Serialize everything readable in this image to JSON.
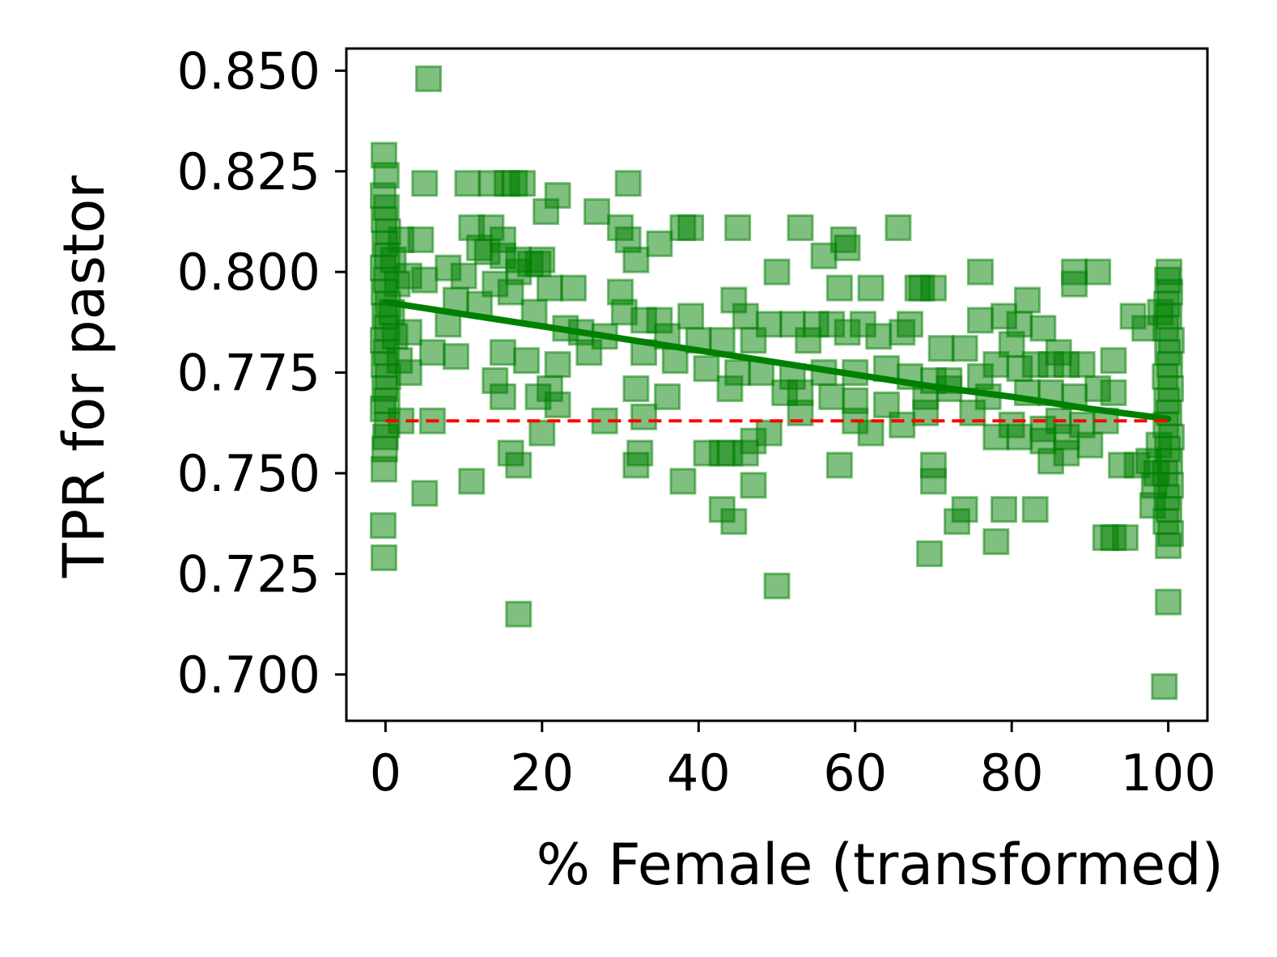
{
  "chart_data": {
    "type": "scatter",
    "title": "",
    "xlabel": "% Female (transformed)",
    "ylabel": "TPR for pastor",
    "xlim": [
      -5,
      105
    ],
    "ylim": [
      0.6885,
      0.8555
    ],
    "xticks": [
      0,
      20,
      40,
      60,
      80,
      100
    ],
    "xtick_labels": [
      "0",
      "20",
      "40",
      "60",
      "80",
      "100"
    ],
    "yticks": [
      0.7,
      0.725,
      0.75,
      0.775,
      0.8,
      0.825,
      0.85
    ],
    "ytick_labels": [
      "0.700",
      "0.725",
      "0.750",
      "0.775",
      "0.800",
      "0.825",
      "0.850"
    ],
    "grid": false,
    "colors": {
      "points": "#008000",
      "trend": "#008000",
      "baseline": "#ff0000"
    },
    "series": [
      {
        "kind": "scatter",
        "marker": "square",
        "alpha": 0.5,
        "points": [
          [
            5.5,
            0.848
          ],
          [
            -0.2,
            0.829
          ],
          [
            0.1,
            0.824
          ],
          [
            5,
            0.822
          ],
          [
            10.5,
            0.822
          ],
          [
            13.5,
            0.822
          ],
          [
            15.5,
            0.822
          ],
          [
            16.5,
            0.822
          ],
          [
            17.5,
            0.822
          ],
          [
            31,
            0.822
          ],
          [
            22,
            0.819
          ],
          [
            20.5,
            0.815
          ],
          [
            27,
            0.815
          ],
          [
            38,
            0.811
          ],
          [
            39,
            0.811
          ],
          [
            45,
            0.811
          ],
          [
            53,
            0.811
          ],
          [
            65.5,
            0.811
          ],
          [
            11,
            0.811
          ],
          [
            13.5,
            0.811
          ],
          [
            30,
            0.811
          ],
          [
            4.5,
            0.808
          ],
          [
            2,
            0.808
          ],
          [
            15,
            0.808
          ],
          [
            31,
            0.808
          ],
          [
            35,
            0.807
          ],
          [
            58.5,
            0.808
          ],
          [
            12,
            0.806
          ],
          [
            13,
            0.805
          ],
          [
            15,
            0.804
          ],
          [
            17,
            0.803
          ],
          [
            18.5,
            0.802
          ],
          [
            20,
            0.803
          ],
          [
            32,
            0.803
          ],
          [
            56,
            0.804
          ],
          [
            59,
            0.806
          ],
          [
            8,
            0.801
          ],
          [
            50,
            0.8
          ],
          [
            76,
            0.8
          ],
          [
            88,
            0.8
          ],
          [
            91,
            0.8
          ],
          [
            10,
            0.799
          ],
          [
            17,
            0.8
          ],
          [
            19.5,
            0.802
          ],
          [
            3,
            0.799
          ],
          [
            5,
            0.798
          ],
          [
            58,
            0.796
          ],
          [
            62,
            0.796
          ],
          [
            68,
            0.796
          ],
          [
            68.5,
            0.796
          ],
          [
            70,
            0.796
          ],
          [
            82,
            0.793
          ],
          [
            88,
            0.797
          ],
          [
            21,
            0.796
          ],
          [
            24,
            0.796
          ],
          [
            30,
            0.795
          ],
          [
            14,
            0.797
          ],
          [
            16,
            0.795
          ],
          [
            9,
            0.793
          ],
          [
            12,
            0.792
          ],
          [
            19,
            0.79
          ],
          [
            44.5,
            0.793
          ],
          [
            30.5,
            0.79
          ],
          [
            33,
            0.788
          ],
          [
            35,
            0.788
          ],
          [
            39,
            0.789
          ],
          [
            46,
            0.789
          ],
          [
            49,
            0.787
          ],
          [
            52,
            0.787
          ],
          [
            55,
            0.787
          ],
          [
            57,
            0.787
          ],
          [
            61,
            0.787
          ],
          [
            67,
            0.787
          ],
          [
            76,
            0.788
          ],
          [
            79,
            0.789
          ],
          [
            81,
            0.787
          ],
          [
            84,
            0.786
          ],
          [
            95.5,
            0.789
          ],
          [
            97,
            0.786
          ],
          [
            99,
            0.79
          ],
          [
            3,
            0.785
          ],
          [
            8,
            0.787
          ],
          [
            23,
            0.786
          ],
          [
            25,
            0.785
          ],
          [
            28,
            0.784
          ],
          [
            36,
            0.784
          ],
          [
            40,
            0.783
          ],
          [
            43,
            0.783
          ],
          [
            47,
            0.783
          ],
          [
            54,
            0.783
          ],
          [
            59,
            0.785
          ],
          [
            63,
            0.784
          ],
          [
            66,
            0.785
          ],
          [
            71,
            0.781
          ],
          [
            74,
            0.781
          ],
          [
            80,
            0.782
          ],
          [
            86,
            0.78
          ],
          [
            6,
            0.78
          ],
          [
            9,
            0.779
          ],
          [
            15,
            0.78
          ],
          [
            18,
            0.778
          ],
          [
            22,
            0.777
          ],
          [
            26,
            0.78
          ],
          [
            33,
            0.78
          ],
          [
            37,
            0.778
          ],
          [
            41,
            0.776
          ],
          [
            45,
            0.775
          ],
          [
            48,
            0.775
          ],
          [
            52,
            0.774
          ],
          [
            56,
            0.775
          ],
          [
            60,
            0.775
          ],
          [
            64,
            0.776
          ],
          [
            67,
            0.774
          ],
          [
            70,
            0.773
          ],
          [
            72,
            0.773
          ],
          [
            76,
            0.774
          ],
          [
            78,
            0.777
          ],
          [
            81,
            0.776
          ],
          [
            83,
            0.777
          ],
          [
            85,
            0.777
          ],
          [
            87,
            0.777
          ],
          [
            89,
            0.777
          ],
          [
            93,
            0.778
          ],
          [
            3,
            0.775
          ],
          [
            21,
            0.771
          ],
          [
            14,
            0.773
          ],
          [
            15,
            0.769
          ],
          [
            19.5,
            0.769
          ],
          [
            22,
            0.767
          ],
          [
            32,
            0.771
          ],
          [
            36,
            0.769
          ],
          [
            44,
            0.771
          ],
          [
            51,
            0.77
          ],
          [
            53,
            0.77
          ],
          [
            57,
            0.769
          ],
          [
            60,
            0.768
          ],
          [
            64,
            0.767
          ],
          [
            69,
            0.769
          ],
          [
            72,
            0.771
          ],
          [
            77,
            0.769
          ],
          [
            82,
            0.77
          ],
          [
            85,
            0.77
          ],
          [
            88,
            0.769
          ],
          [
            91,
            0.771
          ],
          [
            93,
            0.77
          ],
          [
            2,
            0.763
          ],
          [
            6,
            0.763
          ],
          [
            28,
            0.763
          ],
          [
            33,
            0.764
          ],
          [
            53,
            0.765
          ],
          [
            60,
            0.763
          ],
          [
            66,
            0.762
          ],
          [
            69,
            0.765
          ],
          [
            75,
            0.765
          ],
          [
            80,
            0.762
          ],
          [
            84,
            0.761
          ],
          [
            86,
            0.763
          ],
          [
            89,
            0.762
          ],
          [
            92,
            0.763
          ],
          [
            20,
            0.76
          ],
          [
            47,
            0.758
          ],
          [
            49,
            0.76
          ],
          [
            62,
            0.76
          ],
          [
            78,
            0.759
          ],
          [
            81,
            0.759
          ],
          [
            84,
            0.758
          ],
          [
            87,
            0.759
          ],
          [
            90,
            0.757
          ],
          [
            16,
            0.755
          ],
          [
            41,
            0.755
          ],
          [
            43,
            0.755
          ],
          [
            44,
            0.755
          ],
          [
            46,
            0.755
          ],
          [
            32.5,
            0.755
          ],
          [
            58,
            0.752
          ],
          [
            70,
            0.752
          ],
          [
            85,
            0.753
          ],
          [
            87,
            0.755
          ],
          [
            94,
            0.752
          ],
          [
            96,
            0.752
          ],
          [
            17,
            0.752
          ],
          [
            32,
            0.752
          ],
          [
            38,
            0.748
          ],
          [
            47,
            0.747
          ],
          [
            70,
            0.748
          ],
          [
            11,
            0.748
          ],
          [
            5,
            0.745
          ],
          [
            43,
            0.741
          ],
          [
            44.5,
            0.738
          ],
          [
            73,
            0.738
          ],
          [
            74,
            0.741
          ],
          [
            79,
            0.741
          ],
          [
            83,
            0.741
          ],
          [
            78,
            0.733
          ],
          [
            69.5,
            0.73
          ],
          [
            92,
            0.734
          ],
          [
            93,
            0.734
          ],
          [
            94.5,
            0.734
          ],
          [
            100,
            0.732
          ],
          [
            50,
            0.722
          ],
          [
            17,
            0.715
          ],
          [
            100,
            0.718
          ],
          [
            99.5,
            0.697
          ],
          [
            -0.3,
            0.737
          ],
          [
            -0.2,
            0.729
          ],
          [
            -0.2,
            0.751
          ],
          [
            -0.1,
            0.756
          ],
          [
            0,
            0.759
          ],
          [
            0.2,
            0.762
          ],
          [
            -0.3,
            0.766
          ],
          [
            0.2,
            0.768
          ],
          [
            -0.1,
            0.771
          ],
          [
            0.3,
            0.774
          ],
          [
            -0.2,
            0.777
          ],
          [
            0.1,
            0.78
          ],
          [
            -0.3,
            0.783
          ],
          [
            0.2,
            0.786
          ],
          [
            -0.1,
            0.789
          ],
          [
            0.3,
            0.792
          ],
          [
            -0.2,
            0.795
          ],
          [
            0.1,
            0.798
          ],
          [
            -0.3,
            0.801
          ],
          [
            0.2,
            0.804
          ],
          [
            -0.1,
            0.807
          ],
          [
            0.3,
            0.81
          ],
          [
            -0.2,
            0.813
          ],
          [
            0.1,
            0.816
          ],
          [
            -0.3,
            0.819
          ],
          [
            1,
            0.803
          ],
          [
            1.5,
            0.797
          ],
          [
            0.8,
            0.79
          ],
          [
            1.2,
            0.784
          ],
          [
            1.8,
            0.778
          ],
          [
            100.3,
            0.735
          ],
          [
            99.7,
            0.738
          ],
          [
            100.1,
            0.741
          ],
          [
            99.8,
            0.744
          ],
          [
            100.3,
            0.747
          ],
          [
            99.6,
            0.75
          ],
          [
            100.2,
            0.753
          ],
          [
            99.9,
            0.756
          ],
          [
            100.4,
            0.759
          ],
          [
            99.7,
            0.762
          ],
          [
            100.1,
            0.765
          ],
          [
            99.8,
            0.768
          ],
          [
            100.3,
            0.771
          ],
          [
            99.6,
            0.774
          ],
          [
            100.2,
            0.777
          ],
          [
            99.9,
            0.78
          ],
          [
            100.4,
            0.783
          ],
          [
            99.7,
            0.786
          ],
          [
            100.1,
            0.789
          ],
          [
            99.8,
            0.792
          ],
          [
            100.2,
            0.795
          ],
          [
            99.9,
            0.798
          ],
          [
            100.1,
            0.8
          ],
          [
            98.5,
            0.75
          ],
          [
            97.5,
            0.753
          ],
          [
            98.8,
            0.757
          ],
          [
            98.2,
            0.747
          ],
          [
            98,
            0.742
          ]
        ]
      },
      {
        "kind": "line",
        "style": "solid",
        "x": [
          0,
          10,
          20,
          30,
          40,
          50,
          60,
          70,
          80,
          90,
          100
        ],
        "y": [
          0.7925,
          0.7895,
          0.7865,
          0.7835,
          0.7805,
          0.7775,
          0.7745,
          0.7715,
          0.769,
          0.766,
          0.7635
        ]
      },
      {
        "kind": "line",
        "style": "dashed",
        "x": [
          0,
          100
        ],
        "y": [
          0.763,
          0.763
        ]
      }
    ]
  }
}
